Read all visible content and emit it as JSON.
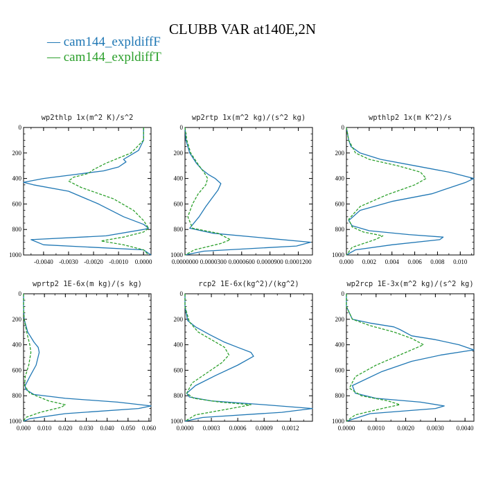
{
  "figure": {
    "title": "CLUBB VAR at140E,2N",
    "legend": [
      {
        "label": "cam144_expldiffF",
        "color": "#1f77b4"
      },
      {
        "label": "cam144_expldiffT",
        "color": "#2ca02c"
      }
    ]
  },
  "chart_data": [
    {
      "type": "line",
      "title": "wp2thlp  1x(m^2 K)/s^2",
      "xlim": [
        -0.0048,
        0.0003
      ],
      "ylim": [
        1000,
        0
      ],
      "xticks": [
        -0.004,
        -0.003,
        -0.002,
        -0.001,
        0.0
      ],
      "xtick_labels": [
        "-0.0040",
        "-0.0030",
        "-0.0020",
        "-0.0010",
        "0.0000"
      ],
      "yticks": [
        0,
        200,
        400,
        600,
        800,
        1000
      ],
      "series": [
        {
          "name": "cam144_expldiffF",
          "color": "#1f77b4",
          "dash": "",
          "x": [
            0.0,
            0.0,
            -0.0002,
            -0.0005,
            -0.0008,
            -0.0007,
            -0.001,
            -0.0016,
            -0.0028,
            -0.004,
            -0.0048,
            -0.0044,
            -0.003,
            -0.0018,
            -0.0008,
            0.0,
            0.0002,
            0.0,
            -0.0015,
            -0.0045,
            -0.004,
            0.0,
            0.0003
          ],
          "y": [
            0,
            100,
            180,
            215,
            250,
            270,
            310,
            340,
            370,
            400,
            430,
            450,
            500,
            600,
            700,
            760,
            790,
            800,
            850,
            880,
            920,
            960,
            1000
          ]
        },
        {
          "name": "cam144_expldiffT",
          "color": "#2ca02c",
          "dash": "4,2",
          "x": [
            0.0,
            0.0,
            -0.0005,
            -0.0015,
            -0.002,
            -0.0022,
            -0.0028,
            -0.003,
            -0.0025,
            -0.0012,
            -0.0004,
            0.0,
            0.0002,
            0.0,
            -0.0008,
            -0.0017,
            -0.0008,
            0.0,
            0.0002
          ],
          "y": [
            0,
            100,
            200,
            280,
            330,
            360,
            390,
            420,
            470,
            560,
            650,
            730,
            790,
            820,
            860,
            890,
            920,
            960,
            1000
          ]
        }
      ]
    },
    {
      "type": "line",
      "title": "wp2rtp  1x(m^2 kg)/(s^2 kg)",
      "xlim": [
        0.0,
        0.000135
      ],
      "ylim": [
        1000,
        0
      ],
      "xticks": [
        0.0,
        3e-05,
        6e-05,
        9e-05,
        0.00012
      ],
      "xtick_labels": [
        "0.0000000",
        "0.0000300",
        "0.0000600",
        "0.0000900",
        "0.0001200"
      ],
      "yticks": [
        0,
        200,
        400,
        600,
        800,
        1000
      ],
      "series": [
        {
          "name": "cam144_expldiffF",
          "color": "#1f77b4",
          "dash": "",
          "x": [
            0.0,
            1e-06,
            5e-06,
            1.2e-05,
            1.8e-05,
            2.5e-05,
            3.2e-05,
            3.8e-05,
            3.5e-05,
            2.8e-05,
            2.2e-05,
            1.5e-05,
            5e-06,
            3e-05,
            0.000133,
            0.000118,
            2e-05,
            0.0
          ],
          "y": [
            0,
            100,
            200,
            280,
            330,
            370,
            400,
            440,
            490,
            560,
            620,
            700,
            790,
            830,
            900,
            930,
            970,
            1000
          ]
        },
        {
          "name": "cam144_expldiffT",
          "color": "#2ca02c",
          "dash": "4,2",
          "x": [
            0.0,
            2e-06,
            6e-06,
            1.4e-05,
            2e-05,
            2.4e-05,
            2.2e-05,
            1.4e-05,
            8e-06,
            3e-06,
            8e-06,
            3.5e-05,
            4.8e-05,
            3.8e-05,
            1e-05,
            0.0
          ],
          "y": [
            0,
            100,
            200,
            290,
            350,
            400,
            450,
            520,
            600,
            700,
            790,
            830,
            880,
            910,
            960,
            1000
          ]
        }
      ]
    },
    {
      "type": "line",
      "title": "wpthlp2  1x(m K^2)/s",
      "xlim": [
        0.0,
        0.0112
      ],
      "ylim": [
        1000,
        0
      ],
      "xticks": [
        0.0,
        0.002,
        0.004,
        0.006,
        0.008,
        0.01
      ],
      "xtick_labels": [
        "0.000",
        "0.002",
        "0.004",
        "0.006",
        "0.008",
        "0.010"
      ],
      "yticks": [
        0,
        200,
        400,
        600,
        800,
        1000
      ],
      "series": [
        {
          "name": "cam144_expldiffF",
          "color": "#1f77b4",
          "dash": "",
          "x": [
            0.0,
            0.0002,
            0.0004,
            0.0012,
            0.003,
            0.006,
            0.009,
            0.0112,
            0.0105,
            0.0075,
            0.004,
            0.0012,
            0.0002,
            0.0005,
            0.002,
            0.0055,
            0.0085,
            0.0082,
            0.004,
            0.0008,
            0.0
          ],
          "y": [
            0,
            100,
            150,
            200,
            250,
            300,
            350,
            400,
            430,
            520,
            580,
            650,
            730,
            770,
            810,
            840,
            860,
            880,
            920,
            960,
            1000
          ]
        },
        {
          "name": "cam144_expldiffT",
          "color": "#2ca02c",
          "dash": "4,2",
          "x": [
            0.0,
            0.0002,
            0.0008,
            0.002,
            0.0045,
            0.0065,
            0.007,
            0.006,
            0.0035,
            0.0012,
            0.0002,
            0.0005,
            0.0015,
            0.0032,
            0.0025,
            0.0005,
            0.0
          ],
          "y": [
            0,
            100,
            200,
            250,
            300,
            350,
            400,
            450,
            530,
            620,
            720,
            780,
            820,
            850,
            880,
            940,
            1000
          ]
        }
      ]
    },
    {
      "type": "line",
      "title": "wprtp2  1E-6x(m kg)/(s kg)",
      "xlim": [
        0.0,
        0.061
      ],
      "ylim": [
        1000,
        0
      ],
      "xticks": [
        0.0,
        0.01,
        0.02,
        0.03,
        0.04,
        0.05,
        0.06
      ],
      "xtick_labels": [
        "0.000",
        "0.010",
        "0.020",
        "0.030",
        "0.040",
        "0.050",
        "0.060"
      ],
      "yticks": [
        0,
        200,
        400,
        600,
        800,
        1000
      ],
      "series": [
        {
          "name": "cam144_expldiffF",
          "color": "#1f77b4",
          "dash": "",
          "x": [
            0.0,
            0.0,
            0.0003,
            0.002,
            0.005,
            0.007,
            0.0075,
            0.006,
            0.003,
            0.0008,
            0.001,
            0.005,
            0.02,
            0.045,
            0.061,
            0.055,
            0.02,
            0.003,
            0.0
          ],
          "y": [
            0,
            100,
            200,
            300,
            380,
            420,
            460,
            560,
            650,
            720,
            750,
            790,
            820,
            850,
            880,
            900,
            940,
            980,
            1000
          ]
        },
        {
          "name": "cam144_expldiffT",
          "color": "#2ca02c",
          "dash": "4,2",
          "x": [
            0.0,
            0.0,
            0.0003,
            0.0015,
            0.003,
            0.0035,
            0.0025,
            0.0008,
            0.0005,
            0.003,
            0.012,
            0.02,
            0.018,
            0.008,
            0.001,
            0.0
          ],
          "y": [
            0,
            100,
            200,
            300,
            400,
            460,
            560,
            650,
            720,
            780,
            840,
            870,
            890,
            930,
            970,
            1000
          ]
        }
      ]
    },
    {
      "type": "line",
      "title": "rcp2  1E-6x(kg^2)/(kg^2)",
      "xlim": [
        0.0,
        0.00145
      ],
      "ylim": [
        1000,
        0
      ],
      "xticks": [
        0.0,
        0.0003,
        0.0006,
        0.0009,
        0.0012
      ],
      "xtick_labels": [
        "0.0000",
        "0.0003",
        "0.0006",
        "0.0009",
        "0.0012"
      ],
      "yticks": [
        0,
        200,
        400,
        600,
        800,
        1000
      ],
      "series": [
        {
          "name": "cam144_expldiffF",
          "color": "#1f77b4",
          "dash": "",
          "x": [
            0.0,
            0.0,
            3e-05,
            0.00012,
            0.00028,
            0.00045,
            0.0006,
            0.00075,
            0.00078,
            0.0006,
            0.00035,
            0.00012,
            2e-05,
            5e-05,
            0.0003,
            0.0009,
            0.00145,
            0.0011,
            0.0002,
            0.0
          ],
          "y": [
            0,
            100,
            210,
            260,
            320,
            380,
            420,
            460,
            490,
            560,
            640,
            720,
            780,
            810,
            840,
            870,
            900,
            930,
            970,
            1000
          ]
        },
        {
          "name": "cam144_expldiffT",
          "color": "#2ca02c",
          "dash": "4,2",
          "x": [
            0.0,
            0.0,
            5e-05,
            0.00015,
            0.0003,
            0.00045,
            0.0005,
            0.00042,
            0.00025,
            8e-05,
            2e-05,
            0.0001,
            0.0004,
            0.00075,
            0.0006,
            0.00012,
            0.0
          ],
          "y": [
            0,
            100,
            220,
            300,
            360,
            420,
            480,
            540,
            620,
            700,
            780,
            820,
            850,
            870,
            890,
            950,
            1000
          ]
        }
      ]
    },
    {
      "type": "line",
      "title": "wp2rcp  1E-3x(m^2 kg)/(s^2 kg)",
      "xlim": [
        0.0,
        0.0043
      ],
      "ylim": [
        1000,
        0
      ],
      "xticks": [
        0.0,
        0.001,
        0.002,
        0.003,
        0.004
      ],
      "xtick_labels": [
        "0.0000",
        "0.0010",
        "0.0020",
        "0.0030",
        "0.0040"
      ],
      "yticks": [
        0,
        200,
        400,
        600,
        800,
        1000
      ],
      "series": [
        {
          "name": "cam144_expldiffF",
          "color": "#1f77b4",
          "dash": "",
          "x": [
            0.0,
            0.0,
            0.0002,
            0.0008,
            0.0016,
            0.0018,
            0.0022,
            0.003,
            0.0038,
            0.0043,
            0.0032,
            0.0022,
            0.0012,
            0.0002,
            0.0003,
            0.001,
            0.0025,
            0.0033,
            0.003,
            0.0008,
            0.0
          ],
          "y": [
            0,
            100,
            200,
            230,
            260,
            280,
            330,
            360,
            400,
            440,
            480,
            530,
            610,
            720,
            780,
            820,
            850,
            880,
            900,
            940,
            1000
          ]
        },
        {
          "name": "cam144_expldiffT",
          "color": "#2ca02c",
          "dash": "4,2",
          "x": [
            0.0,
            0.0,
            0.0002,
            0.0008,
            0.0016,
            0.0022,
            0.0026,
            0.002,
            0.001,
            0.0003,
            0.0001,
            0.0005,
            0.0014,
            0.0018,
            0.0012,
            0.0003,
            0.0
          ],
          "y": [
            0,
            100,
            200,
            250,
            300,
            350,
            400,
            460,
            560,
            650,
            740,
            800,
            840,
            870,
            900,
            950,
            1000
          ]
        }
      ]
    }
  ]
}
